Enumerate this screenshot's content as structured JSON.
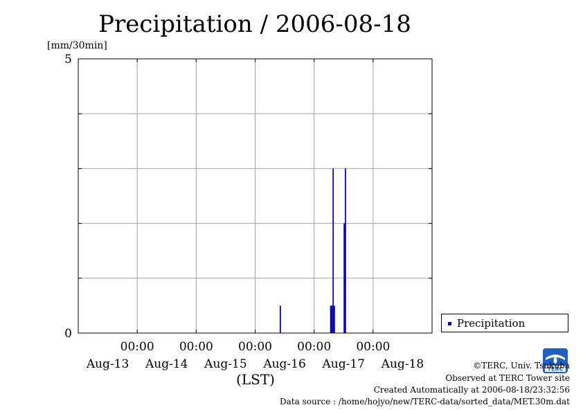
{
  "chart_data": {
    "type": "bar",
    "title": "Precipitation / 2006-08-18",
    "ylabel": "[mm/30min]",
    "xlabel": "(LST)",
    "ylim": [
      0,
      5
    ],
    "y_tick_labels": [
      "0",
      "5"
    ],
    "y_gridlines": [
      0,
      1,
      2,
      3,
      4,
      5
    ],
    "x_range_days": [
      "2006-08-13 00:00",
      "2006-08-19 00:00"
    ],
    "x_ticks": [
      {
        "time": "00:00",
        "date": "Aug-13",
        "at": "2006-08-14 00:00"
      },
      {
        "time": "00:00",
        "date": "Aug-14",
        "at": "2006-08-15 00:00"
      },
      {
        "time": "00:00",
        "date": "Aug-15",
        "at": "2006-08-16 00:00"
      },
      {
        "time": "00:00",
        "date": "Aug-16",
        "at": "2006-08-17 00:00"
      },
      {
        "time": "00:00",
        "date": "Aug-17",
        "at": "2006-08-18 00:00"
      }
    ],
    "x_date_labels": [
      "Aug-13",
      "Aug-14",
      "Aug-15",
      "Aug-16",
      "Aug-17",
      "Aug-18"
    ],
    "grid": true,
    "legend_placement": "bottom-right outside",
    "series": [
      {
        "name": "Precipitation",
        "color": "#0000cc",
        "points": [
          {
            "t": "2006-08-16 10:30",
            "value": 0.5
          },
          {
            "t": "2006-08-17 07:00",
            "value": 0.5
          },
          {
            "t": "2006-08-17 07:30",
            "value": 0.5
          },
          {
            "t": "2006-08-17 08:00",
            "value": 3.0
          },
          {
            "t": "2006-08-17 08:30",
            "value": 0.5
          },
          {
            "t": "2006-08-17 12:30",
            "value": 2.0
          },
          {
            "t": "2006-08-17 13:00",
            "value": 3.0
          }
        ]
      }
    ]
  },
  "legend": {
    "label": "Precipitation"
  },
  "footer": {
    "copyright": "©TERC, Univ. Tsukuba",
    "observed": "Observed at TERC Tower site",
    "created": "Created Automatically at 2006-08-18/23:32:56",
    "source": "Data source : /home/hojyo/new/TERC-data/sorted_data/MET.30m.dat"
  },
  "logo": {
    "icon": "terc-logo-icon",
    "text": "TERC"
  }
}
